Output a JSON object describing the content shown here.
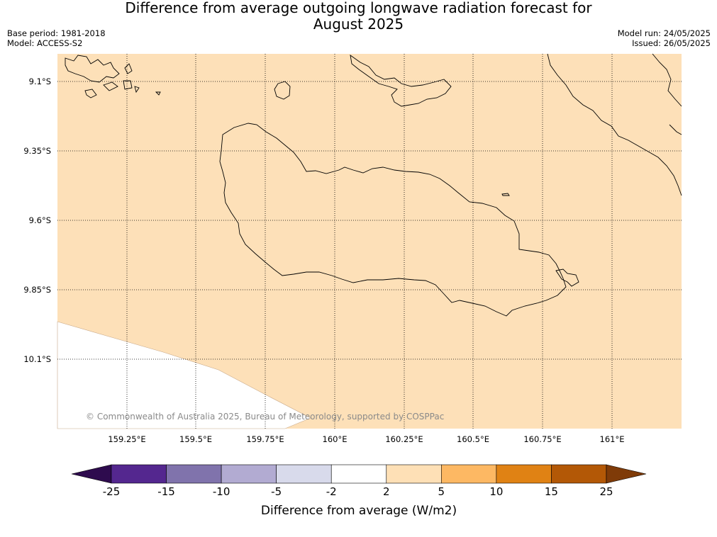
{
  "title_line1": "Difference from average outgoing longwave radiation forecast for",
  "title_line2": "August 2025",
  "base_period": "Base period: 1981-2018",
  "model": "Model: ACCESS-S2",
  "model_run": "Model run: 24/05/2025",
  "issued": "Issued: 26/05/2025",
  "copyright": "© Commonwealth of Australia 2025, Bureau of Meteorology, supported by COSPPac",
  "lat_labels": [
    "9.1°S",
    "9.35°S",
    "9.6°S",
    "9.85°S",
    "10.1°S"
  ],
  "lon_labels": [
    "159.25°E",
    "159.5°E",
    "159.75°E",
    "160°E",
    "160.25°E",
    "160.5°E",
    "160.75°E",
    "161°E"
  ],
  "colorbar": {
    "label": "Difference from average (W/m2)",
    "ticks": [
      "-25",
      "-15",
      "-10",
      "-5",
      "-2",
      "2",
      "5",
      "10",
      "15",
      "25"
    ],
    "colors": [
      "#2e0b4e",
      "#54278f",
      "#8073ac",
      "#b2abd2",
      "#d8daeb",
      "#ffffff",
      "#fee0b6",
      "#fdb863",
      "#e08214",
      "#b35806",
      "#7f3b08"
    ]
  },
  "map_fill_color": "#fde0b8"
}
